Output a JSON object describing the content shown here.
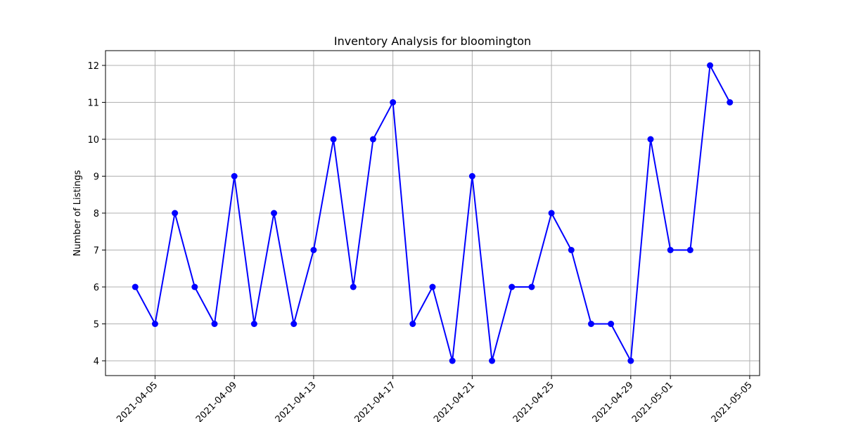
{
  "chart_data": {
    "type": "line",
    "title": "Inventory Analysis for bloomington",
    "xlabel": "",
    "ylabel": "Number of Listings",
    "x": [
      "2021-04-04",
      "2021-04-05",
      "2021-04-06",
      "2021-04-07",
      "2021-04-08",
      "2021-04-09",
      "2021-04-10",
      "2021-04-11",
      "2021-04-12",
      "2021-04-13",
      "2021-04-14",
      "2021-04-15",
      "2021-04-16",
      "2021-04-17",
      "2021-04-18",
      "2021-04-19",
      "2021-04-20",
      "2021-04-21",
      "2021-04-22",
      "2021-04-23",
      "2021-04-24",
      "2021-04-25",
      "2021-04-26",
      "2021-04-27",
      "2021-04-28",
      "2021-04-29",
      "2021-04-30",
      "2021-05-01",
      "2021-05-02",
      "2021-05-03",
      "2021-05-04"
    ],
    "series": [
      {
        "values": [
          6,
          5,
          8,
          6,
          5,
          9,
          5,
          8,
          5,
          7,
          10,
          6,
          10,
          11,
          5,
          6,
          4,
          9,
          4,
          6,
          6,
          8,
          7,
          5,
          5,
          4,
          10,
          7,
          7,
          12,
          11
        ],
        "color": "#0000ff",
        "marker": "circle"
      }
    ],
    "xticks": [
      "2021-04-05",
      "2021-04-09",
      "2021-04-13",
      "2021-04-17",
      "2021-04-21",
      "2021-04-25",
      "2021-04-29",
      "2021-05-01",
      "2021-05-05"
    ],
    "yticks": [
      4,
      5,
      6,
      7,
      8,
      9,
      10,
      11,
      12
    ],
    "xlim": [
      "2021-04-02T12:00",
      "2021-05-05T12:00"
    ],
    "ylim": [
      3.6,
      12.4
    ],
    "grid": true
  }
}
